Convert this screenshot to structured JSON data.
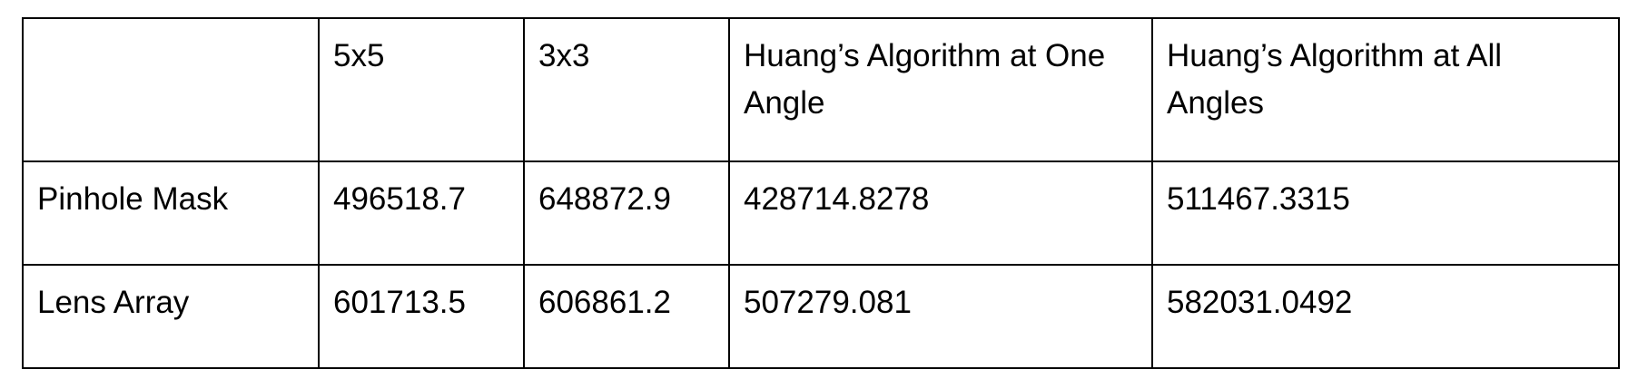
{
  "table": {
    "columns": [
      "",
      "5x5",
      "3x3",
      "Huang’s Algorithm at One Angle",
      "Huang’s Algorithm at All Angles"
    ],
    "rows": [
      {
        "label": "Pinhole Mask",
        "values": [
          "496518.7",
          "648872.9",
          "428714.8278",
          "511467.3315"
        ]
      },
      {
        "label": "Lens Array",
        "values": [
          "601713.5",
          "606861.2",
          "507279.081",
          "582031.0492"
        ]
      }
    ]
  }
}
